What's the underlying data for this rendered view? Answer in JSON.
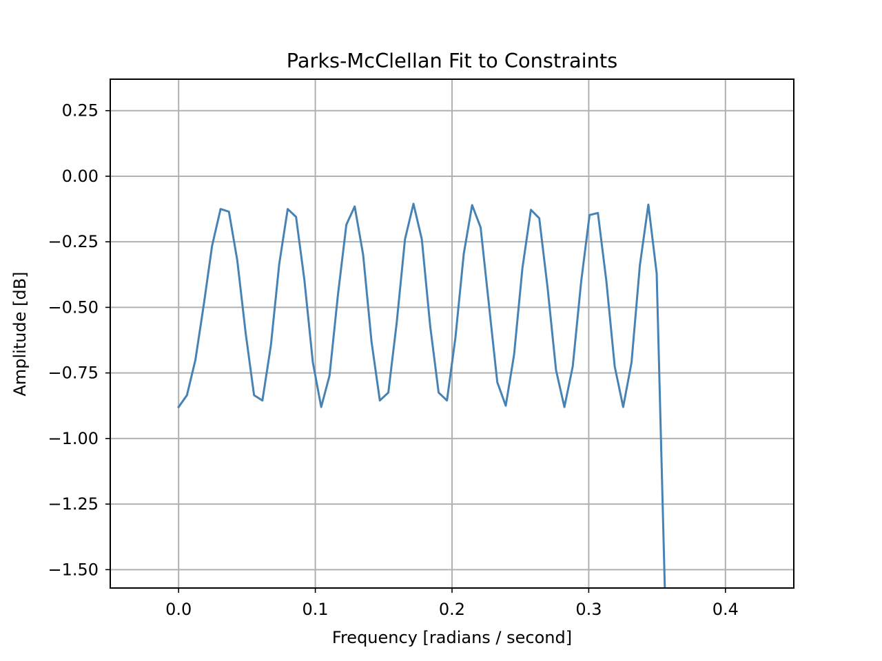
{
  "chart_data": {
    "type": "line",
    "title": "Parks-McClellan Fit to Constraints",
    "xlabel": "Frequency [radians / second]",
    "ylabel": "Amplitude [dB]",
    "xlim": [
      -0.05,
      0.45
    ],
    "ylim": [
      -1.57,
      0.37
    ],
    "xticks": [
      0.0,
      0.1,
      0.2,
      0.3,
      0.4
    ],
    "xtick_labels": [
      "0.0",
      "0.1",
      "0.2",
      "0.3",
      "0.4"
    ],
    "yticks": [
      0.25,
      0.0,
      -0.25,
      -0.5,
      -0.75,
      -1.0,
      -1.25,
      -1.5
    ],
    "ytick_labels": [
      "0.25",
      "0.00",
      "−0.25",
      "−0.50",
      "−0.75",
      "−1.00",
      "−1.25",
      "−1.50"
    ],
    "grid": true,
    "series": [
      {
        "color": "#4682b4",
        "x": [
          0.0,
          0.0061,
          0.0123,
          0.0184,
          0.0245,
          0.0307,
          0.0368,
          0.0429,
          0.0491,
          0.0552,
          0.0613,
          0.0675,
          0.0736,
          0.0798,
          0.0859,
          0.092,
          0.0982,
          0.1043,
          0.1104,
          0.1166,
          0.1227,
          0.1288,
          0.135,
          0.1411,
          0.1472,
          0.1534,
          0.1595,
          0.1656,
          0.1718,
          0.1779,
          0.184,
          0.1902,
          0.1963,
          0.2025,
          0.2086,
          0.2147,
          0.2209,
          0.227,
          0.2331,
          0.2393,
          0.2454,
          0.2515,
          0.2577,
          0.2638,
          0.2699,
          0.2761,
          0.2822,
          0.2883,
          0.2945,
          0.3006,
          0.3067,
          0.3129,
          0.319,
          0.3252,
          0.3313,
          0.3374,
          0.3436,
          0.3497,
          0.3558
        ],
        "y": [
          -0.88,
          -0.835,
          -0.7,
          -0.49,
          -0.265,
          -0.125,
          -0.135,
          -0.32,
          -0.6,
          -0.835,
          -0.855,
          -0.645,
          -0.335,
          -0.125,
          -0.155,
          -0.395,
          -0.71,
          -0.88,
          -0.76,
          -0.45,
          -0.185,
          -0.115,
          -0.3,
          -0.63,
          -0.855,
          -0.825,
          -0.56,
          -0.24,
          -0.105,
          -0.24,
          -0.57,
          -0.825,
          -0.855,
          -0.615,
          -0.295,
          -0.11,
          -0.195,
          -0.49,
          -0.785,
          -0.875,
          -0.68,
          -0.35,
          -0.128,
          -0.16,
          -0.425,
          -0.74,
          -0.88,
          -0.725,
          -0.4,
          -0.148,
          -0.14,
          -0.4,
          -0.725,
          -0.88,
          -0.71,
          -0.34,
          -0.108,
          -0.37,
          -1.6
        ]
      }
    ]
  }
}
